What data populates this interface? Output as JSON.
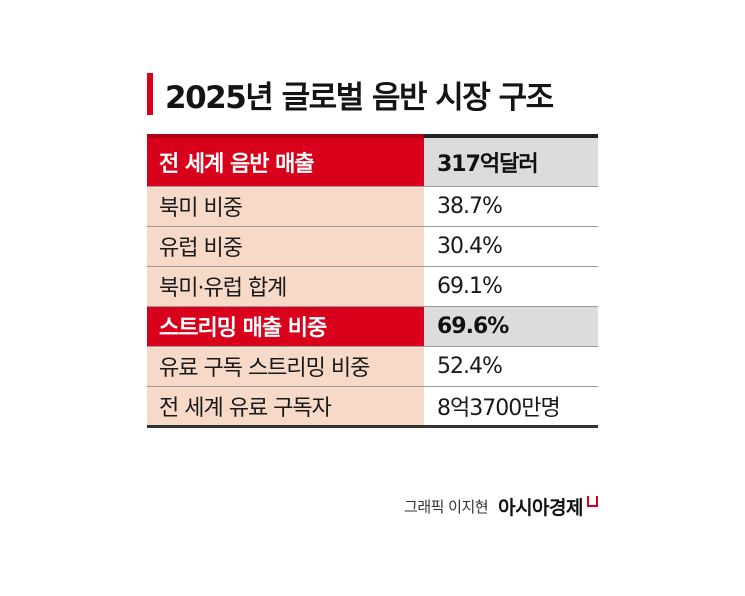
{
  "title": "2025년 글로벌 음반 시장 구조",
  "colors": {
    "accent_red": "#d9001b",
    "label_bg": "#f7d9c8",
    "highlight_value_bg": "#dcdcdc"
  },
  "table": {
    "rows": [
      {
        "label": "전 세계 음반 매출",
        "value": "317억달러",
        "highlight": true
      },
      {
        "label": "북미 비중",
        "value": "38.7%",
        "highlight": false
      },
      {
        "label": "유럽 비중",
        "value": "30.4%",
        "highlight": false
      },
      {
        "label": "북미·유럽 합계",
        "value": "69.1%",
        "highlight": false
      },
      {
        "label": "스트리밍 매출 비중",
        "value": "69.6%",
        "highlight": true
      },
      {
        "label": "유료 구독 스트리밍 비중",
        "value": "52.4%",
        "highlight": false
      },
      {
        "label": "전 세계 유료 구독자",
        "value": "8억3700만명",
        "highlight": false
      }
    ]
  },
  "credit": {
    "author": "그래픽 이지현",
    "brand": "아시아경제"
  }
}
